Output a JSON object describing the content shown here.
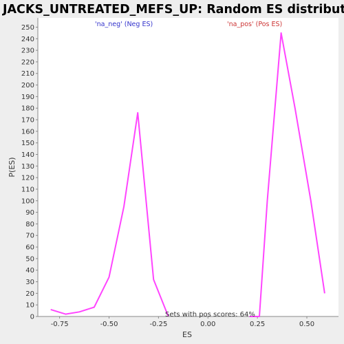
{
  "chart_data": {
    "type": "line",
    "title": "JACKS_UNTREATED_MEFS_UP: Random ES distribution",
    "xlabel": "ES",
    "ylabel": "P(ES)",
    "xlim": [
      -0.86,
      0.66
    ],
    "ylim": [
      0,
      258
    ],
    "x_ticks": [
      -0.75,
      -0.5,
      -0.25,
      0.0,
      0.25,
      0.5
    ],
    "x_tick_labels": [
      "-0.75",
      "-0.50",
      "-0.25",
      "0.00",
      "0.25",
      "0.50"
    ],
    "y_ticks": [
      0,
      10,
      20,
      30,
      40,
      50,
      60,
      70,
      80,
      90,
      100,
      110,
      120,
      130,
      140,
      150,
      160,
      170,
      180,
      190,
      200,
      210,
      220,
      230,
      240,
      250
    ],
    "grid": false,
    "series": [
      {
        "name": "'na_neg' (Neg ES)",
        "color": "#ff44ff",
        "x": [
          -0.795,
          -0.72,
          -0.65,
          -0.575,
          -0.5,
          -0.425,
          -0.355,
          -0.275,
          -0.2
        ],
        "y": [
          6,
          2,
          4,
          8,
          34,
          95,
          176,
          32,
          0
        ]
      },
      {
        "name": "'na_pos' (Pos ES)",
        "color": "#ff44ff",
        "x": [
          0.21,
          0.26,
          0.3,
          0.37,
          0.44,
          0.52,
          0.59
        ],
        "y": [
          0,
          0,
          100,
          245,
          180,
          100,
          20
        ]
      }
    ],
    "legend": [
      {
        "label": "'na_neg' (Neg ES)",
        "color": "#3333cc"
      },
      {
        "label": "'na_pos' (Pos ES)",
        "color": "#cc3333"
      }
    ],
    "annotation": "Sets with pos scores: 64%"
  }
}
